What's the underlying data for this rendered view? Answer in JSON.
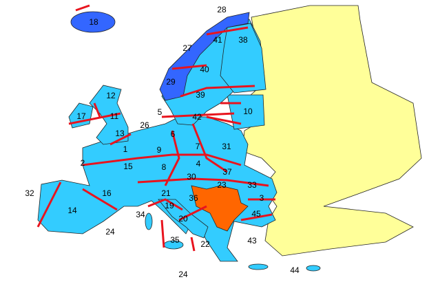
{
  "labels": [
    "18",
    "28",
    "27",
    "41",
    "38",
    "40",
    "29",
    "39",
    "12",
    "17",
    "11",
    "5",
    "42",
    "10",
    "26",
    "13",
    "6",
    "1",
    "9",
    "7",
    "31",
    "2",
    "15",
    "8",
    "4",
    "37",
    "30",
    "23",
    "33",
    "32",
    "16",
    "21",
    "36",
    "3",
    "14",
    "19",
    "34",
    "45",
    "20",
    "24",
    "35",
    "22",
    "43",
    "24",
    "44"
  ]
}
